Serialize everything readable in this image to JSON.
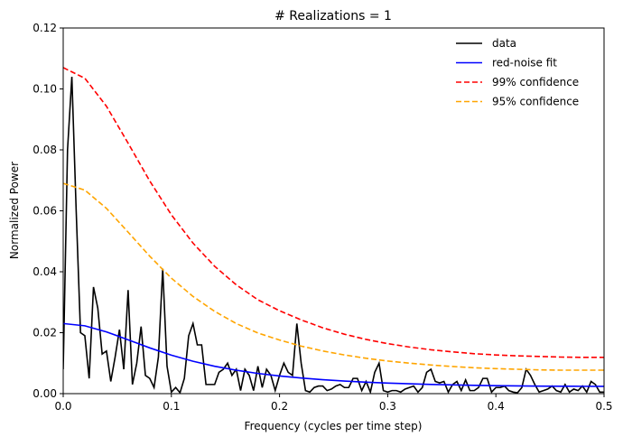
{
  "chart_data": {
    "type": "line",
    "title": "# Realizations = 1",
    "xlabel": "Frequency (cycles per time step)",
    "ylabel": "Normalized Power",
    "xlim": [
      0,
      0.5
    ],
    "ylim": [
      0,
      0.12
    ],
    "xticks": [
      {
        "value": 0,
        "label": "0.0"
      },
      0.1,
      0.2,
      0.3,
      0.4,
      0.5
    ],
    "yticks": [
      {
        "value": 0,
        "label": "0.00"
      },
      0.02,
      0.04,
      0.06,
      0.08,
      {
        "value": 0.1,
        "label": "0.10"
      },
      0.12
    ],
    "legend": "upper right",
    "grid": false,
    "series": [
      {
        "name": "data",
        "color": "#000000",
        "linestyle": "solid",
        "x": [
          0,
          0.004,
          0.008,
          0.012,
          0.016,
          0.02,
          0.024,
          0.028,
          0.032,
          0.036,
          0.04,
          0.044,
          0.048,
          0.052,
          0.056,
          0.06,
          0.064,
          0.068,
          0.072,
          0.076,
          0.08,
          0.084,
          0.088,
          0.092,
          0.096,
          0.1,
          0.104,
          0.108,
          0.112,
          0.116,
          0.12,
          0.124,
          0.128,
          0.132,
          0.136,
          0.14,
          0.144,
          0.148,
          0.152,
          0.156,
          0.16,
          0.164,
          0.168,
          0.172,
          0.176,
          0.18,
          0.184,
          0.188,
          0.192,
          0.196,
          0.2,
          0.204,
          0.208,
          0.212,
          0.216,
          0.22,
          0.224,
          0.228,
          0.232,
          0.236,
          0.24,
          0.244,
          0.248,
          0.252,
          0.256,
          0.26,
          0.264,
          0.268,
          0.272,
          0.276,
          0.28,
          0.284,
          0.288,
          0.292,
          0.296,
          0.3,
          0.304,
          0.308,
          0.312,
          0.316,
          0.32,
          0.324,
          0.328,
          0.332,
          0.336,
          0.34,
          0.344,
          0.348,
          0.352,
          0.356,
          0.36,
          0.364,
          0.368,
          0.372,
          0.376,
          0.38,
          0.384,
          0.388,
          0.392,
          0.396,
          0.4,
          0.404,
          0.408,
          0.412,
          0.416,
          0.42,
          0.424,
          0.428,
          0.432,
          0.436,
          0.44,
          0.444,
          0.448,
          0.452,
          0.456,
          0.46,
          0.464,
          0.468,
          0.472,
          0.476,
          0.48,
          0.484,
          0.488,
          0.492,
          0.496,
          0.5
        ],
        "values": [
          0.008,
          0.08,
          0.104,
          0.06,
          0.02,
          0.019,
          0.005,
          0.035,
          0.028,
          0.013,
          0.014,
          0.004,
          0.012,
          0.021,
          0.008,
          0.034,
          0.003,
          0.01,
          0.022,
          0.006,
          0.005,
          0.002,
          0.012,
          0.041,
          0.009,
          0.0005,
          0.002,
          0.0003,
          0.005,
          0.019,
          0.023,
          0.016,
          0.016,
          0.003,
          0.003,
          0.003,
          0.007,
          0.008,
          0.01,
          0.006,
          0.008,
          0.001,
          0.008,
          0.006,
          0.001,
          0.009,
          0.002,
          0.008,
          0.006,
          0.001,
          0.006,
          0.01,
          0.007,
          0.006,
          0.023,
          0.01,
          0.001,
          0.0005,
          0.002,
          0.0025,
          0.0025,
          0.001,
          0.0015,
          0.0025,
          0.003,
          0.002,
          0.002,
          0.005,
          0.005,
          0.001,
          0.004,
          0.0005,
          0.007,
          0.01,
          0.001,
          0.0005,
          0.001,
          0.001,
          0.0005,
          0.0015,
          0.002,
          0.0025,
          0.0005,
          0.002,
          0.007,
          0.008,
          0.004,
          0.0035,
          0.004,
          0.0005,
          0.003,
          0.004,
          0.001,
          0.0045,
          0.001,
          0.001,
          0.002,
          0.005,
          0.005,
          0.0005,
          0.002,
          0.002,
          0.0025,
          0.001,
          0.0005,
          0.0003,
          0.002,
          0.008,
          0.006,
          0.003,
          0.0005,
          0.001,
          0.0015,
          0.0025,
          0.001,
          0.0005,
          0.003,
          0.0005,
          0.0015,
          0.001,
          0.0025,
          0.0005,
          0.004,
          0.003,
          0.0005,
          0.0005
        ]
      },
      {
        "name": "red-noise fit",
        "color": "#0000ff",
        "linestyle": "solid",
        "x": [
          0,
          0.02,
          0.04,
          0.06,
          0.08,
          0.1,
          0.12,
          0.14,
          0.16,
          0.18,
          0.2,
          0.22,
          0.24,
          0.26,
          0.28,
          0.3,
          0.32,
          0.34,
          0.36,
          0.38,
          0.4,
          0.42,
          0.44,
          0.46,
          0.48,
          0.5
        ],
        "values": [
          0.023,
          0.02226,
          0.02027,
          0.01767,
          0.01502,
          0.01263,
          0.01062,
          0.00899,
          0.00768,
          0.00663,
          0.00579,
          0.00512,
          0.00457,
          0.00413,
          0.00377,
          0.00347,
          0.00323,
          0.00302,
          0.00286,
          0.00273,
          0.00262,
          0.00254,
          0.00247,
          0.00243,
          0.00241,
          0.0024
        ]
      },
      {
        "name": "99% confidence",
        "color": "#ff0000",
        "linestyle": "dashed",
        "x": [
          0,
          0.02,
          0.04,
          0.06,
          0.08,
          0.1,
          0.12,
          0.14,
          0.16,
          0.18,
          0.2,
          0.22,
          0.24,
          0.26,
          0.28,
          0.3,
          0.32,
          0.34,
          0.36,
          0.38,
          0.4,
          0.42,
          0.44,
          0.46,
          0.48,
          0.5
        ],
        "values": [
          0.107,
          0.1035,
          0.0943,
          0.0822,
          0.0698,
          0.0587,
          0.0494,
          0.0418,
          0.0357,
          0.0308,
          0.0272,
          0.0242,
          0.0216,
          0.0195,
          0.0178,
          0.0164,
          0.0153,
          0.0144,
          0.0137,
          0.0131,
          0.0127,
          0.0124,
          0.0122,
          0.012,
          0.0119,
          0.0119
        ]
      },
      {
        "name": "95% confidence",
        "color": "#ffa500",
        "linestyle": "dashed",
        "x": [
          0,
          0.02,
          0.04,
          0.06,
          0.08,
          0.1,
          0.12,
          0.14,
          0.16,
          0.18,
          0.2,
          0.22,
          0.24,
          0.26,
          0.28,
          0.3,
          0.32,
          0.34,
          0.36,
          0.38,
          0.4,
          0.42,
          0.44,
          0.46,
          0.48,
          0.5
        ],
        "values": [
          0.069,
          0.0668,
          0.0608,
          0.053,
          0.0451,
          0.0379,
          0.0319,
          0.027,
          0.023,
          0.0199,
          0.0176,
          0.0156,
          0.014,
          0.0127,
          0.0116,
          0.0107,
          0.01,
          0.0094,
          0.0089,
          0.0085,
          0.0082,
          0.008,
          0.0078,
          0.0077,
          0.0077,
          0.0077
        ]
      }
    ]
  }
}
